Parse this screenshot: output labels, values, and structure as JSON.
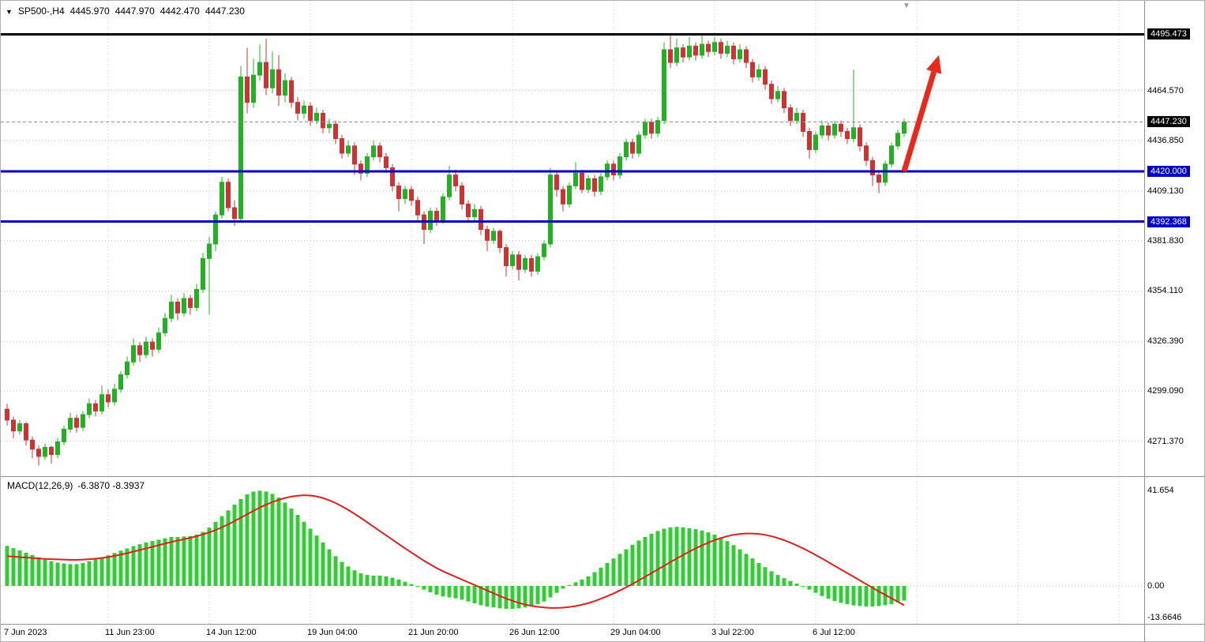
{
  "icons": {
    "symbol_marker": "▼",
    "chart_shift_marker": "▼"
  },
  "info_bar": {
    "symbol": "SP500-,H4",
    "open": "4445.970",
    "high": "4447.970",
    "low": "4442.470",
    "close": "4447.230"
  },
  "colors": {
    "background": "#ffffff",
    "grid": "#c4c4c4",
    "candle_up": "#23b123",
    "candle_down": "#cb3434",
    "hline_black": "#000000",
    "hline_blue": "#0000c8",
    "current_price_line": "#8c8c8c",
    "macd_histogram": "#32cd32",
    "macd_signal": "#e01f1f",
    "arrow": "#e8291c",
    "separator": "#909090",
    "axis_text": "#000000"
  },
  "price_axis": {
    "labels": [
      {
        "text": "4495.473",
        "value": 4495.473,
        "type": "black"
      },
      {
        "text": "4464.570",
        "value": 4464.57,
        "type": "normal"
      },
      {
        "text": "4447.230",
        "value": 4447.23,
        "type": "black"
      },
      {
        "text": "4436.850",
        "value": 4436.85,
        "type": "normal"
      },
      {
        "text": "4420.000",
        "value": 4420.0,
        "type": "blue"
      },
      {
        "text": "4409.130",
        "value": 4409.13,
        "type": "normal"
      },
      {
        "text": "4392.368",
        "value": 4392.368,
        "type": "blue"
      },
      {
        "text": "4381.830",
        "value": 4381.83,
        "type": "normal"
      },
      {
        "text": "4354.110",
        "value": 4354.11,
        "type": "normal"
      },
      {
        "text": "4326.390",
        "value": 4326.39,
        "type": "normal"
      },
      {
        "text": "4299.090",
        "value": 4299.09,
        "type": "normal"
      },
      {
        "text": "4271.370",
        "value": 4271.37,
        "type": "normal"
      }
    ]
  },
  "time_axis": {
    "grid_step": 16,
    "labels": [
      {
        "index": 0,
        "label": "7 Jun 2023"
      },
      {
        "index": 16,
        "label": "11 Jun 23:00"
      },
      {
        "index": 32,
        "label": "14 Jun 12:00"
      },
      {
        "index": 48,
        "label": "19 Jun 04:00"
      },
      {
        "index": 64,
        "label": "21 Jun 20:00"
      },
      {
        "index": 80,
        "label": "26 Jun 12:00"
      },
      {
        "index": 96,
        "label": "29 Jun 04:00"
      },
      {
        "index": 112,
        "label": "3 Jul 22:00"
      },
      {
        "index": 128,
        "label": "6 Jul 12:00"
      }
    ]
  },
  "chart_data": {
    "type": "candlestick",
    "symbol": "SP500-",
    "timeframe": "H4",
    "title": "SP500-,H4 4445.970 4447.970 4442.470 4447.230",
    "current_price": 4447.23,
    "price_range_visible": [
      4258,
      4496
    ],
    "hlines": [
      {
        "price": 4495.473,
        "color": "#000000",
        "width": 3,
        "label": "4495.473"
      },
      {
        "price": 4420.0,
        "color": "#0000c8",
        "width": 3,
        "label": "4420.000"
      },
      {
        "price": 4392.368,
        "color": "#0000c8",
        "width": 3,
        "label": "4392.368"
      }
    ],
    "annotation_arrow": {
      "from": {
        "index": 142,
        "price": 4420
      },
      "to": {
        "index": 147.5,
        "price": 4484
      }
    },
    "candles": [
      [
        4289,
        4292,
        4280,
        4283
      ],
      [
        4283,
        4285,
        4273,
        4277
      ],
      [
        4277,
        4283,
        4275,
        4281
      ],
      [
        4281,
        4282,
        4269,
        4272
      ],
      [
        4272,
        4274,
        4262,
        4267
      ],
      [
        4267,
        4269,
        4258,
        4263
      ],
      [
        4263,
        4270,
        4261,
        4268
      ],
      [
        4268,
        4269,
        4259,
        4264
      ],
      [
        4264,
        4273,
        4262,
        4271
      ],
      [
        4271,
        4280,
        4269,
        4278
      ],
      [
        4278,
        4287,
        4276,
        4284
      ],
      [
        4284,
        4286,
        4276,
        4279
      ],
      [
        4279,
        4288,
        4277,
        4286
      ],
      [
        4286,
        4295,
        4284,
        4292
      ],
      [
        4292,
        4294,
        4285,
        4288
      ],
      [
        4288,
        4302,
        4286,
        4297
      ],
      [
        4297,
        4300,
        4290,
        4293
      ],
      [
        4293,
        4303,
        4291,
        4300
      ],
      [
        4300,
        4310,
        4298,
        4308
      ],
      [
        4308,
        4318,
        4306,
        4315
      ],
      [
        4315,
        4328,
        4313,
        4324
      ],
      [
        4324,
        4326,
        4315,
        4319
      ],
      [
        4319,
        4329,
        4317,
        4326
      ],
      [
        4326,
        4328,
        4318,
        4322
      ],
      [
        4322,
        4334,
        4320,
        4331
      ],
      [
        4331,
        4342,
        4329,
        4339
      ],
      [
        4339,
        4352,
        4337,
        4348
      ],
      [
        4348,
        4350,
        4338,
        4342
      ],
      [
        4342,
        4353,
        4340,
        4350
      ],
      [
        4350,
        4352,
        4341,
        4345
      ],
      [
        4345,
        4358,
        4343,
        4355
      ],
      [
        4355,
        4375,
        4353,
        4372
      ],
      [
        4372,
        4384,
        4341,
        4380
      ],
      [
        4380,
        4398,
        4376,
        4396
      ],
      [
        4396,
        4417,
        4394,
        4414
      ],
      [
        4414,
        4416,
        4398,
        4400
      ],
      [
        4400,
        4404,
        4390,
        4394
      ],
      [
        4394,
        4478,
        4392,
        4472
      ],
      [
        4472,
        4488,
        4452,
        4458
      ],
      [
        4458,
        4482,
        4455,
        4473
      ],
      [
        4473,
        4490,
        4470,
        4480
      ],
      [
        4480,
        4493,
        4462,
        4466
      ],
      [
        4466,
        4486,
        4463,
        4476
      ],
      [
        4476,
        4484,
        4456,
        4462
      ],
      [
        4462,
        4474,
        4458,
        4470
      ],
      [
        4470,
        4472,
        4455,
        4458
      ],
      [
        4458,
        4461,
        4448,
        4452
      ],
      [
        4452,
        4459,
        4449,
        4456
      ],
      [
        4456,
        4458,
        4445,
        4448
      ],
      [
        4448,
        4455,
        4446,
        4452
      ],
      [
        4452,
        4454,
        4441,
        4444
      ],
      [
        4444,
        4449,
        4441,
        4446
      ],
      [
        4446,
        4448,
        4435,
        4438
      ],
      [
        4438,
        4440,
        4427,
        4430
      ],
      [
        4430,
        4437,
        4428,
        4434
      ],
      [
        4434,
        4436,
        4418,
        4424
      ],
      [
        4424,
        4426,
        4415,
        4419
      ],
      [
        4419,
        4430,
        4417,
        4428
      ],
      [
        4428,
        4437,
        4426,
        4434
      ],
      [
        4434,
        4436,
        4425,
        4428
      ],
      [
        4428,
        4430,
        4419,
        4422
      ],
      [
        4422,
        4424,
        4409,
        4412
      ],
      [
        4412,
        4414,
        4398,
        4405
      ],
      [
        4405,
        4412,
        4402,
        4410
      ],
      [
        4410,
        4412,
        4401,
        4404
      ],
      [
        4404,
        4406,
        4393,
        4396
      ],
      [
        4396,
        4398,
        4380,
        4388
      ],
      [
        4388,
        4400,
        4386,
        4398
      ],
      [
        4398,
        4400,
        4390,
        4393
      ],
      [
        4393,
        4408,
        4391,
        4406
      ],
      [
        4406,
        4423,
        4404,
        4418
      ],
      [
        4418,
        4421,
        4409,
        4412
      ],
      [
        4412,
        4414,
        4399,
        4402
      ],
      [
        4402,
        4404,
        4392,
        4395
      ],
      [
        4395,
        4402,
        4393,
        4399
      ],
      [
        4399,
        4401,
        4385,
        4388
      ],
      [
        4388,
        4390,
        4376,
        4382
      ],
      [
        4382,
        4389,
        4380,
        4387
      ],
      [
        4387,
        4388,
        4375,
        4378
      ],
      [
        4378,
        4380,
        4362,
        4368
      ],
      [
        4368,
        4376,
        4366,
        4374
      ],
      [
        4374,
        4376,
        4360,
        4366
      ],
      [
        4366,
        4374,
        4364,
        4372
      ],
      [
        4372,
        4374,
        4362,
        4365
      ],
      [
        4365,
        4375,
        4363,
        4373
      ],
      [
        4373,
        4382,
        4371,
        4380
      ],
      [
        4380,
        4422,
        4378,
        4418
      ],
      [
        4418,
        4420,
        4406,
        4410
      ],
      [
        4410,
        4412,
        4398,
        4402
      ],
      [
        4402,
        4414,
        4400,
        4412
      ],
      [
        4412,
        4425,
        4410,
        4419
      ],
      [
        4419,
        4421,
        4408,
        4410
      ],
      [
        4410,
        4418,
        4408,
        4416
      ],
      [
        4416,
        4418,
        4406,
        4409
      ],
      [
        4409,
        4419,
        4407,
        4417
      ],
      [
        4417,
        4426,
        4415,
        4424
      ],
      [
        4424,
        4426,
        4415,
        4418
      ],
      [
        4418,
        4430,
        4416,
        4428
      ],
      [
        4428,
        4438,
        4426,
        4436
      ],
      [
        4436,
        4438,
        4427,
        4430
      ],
      [
        4430,
        4442,
        4428,
        4440
      ],
      [
        4440,
        4449,
        4438,
        4447
      ],
      [
        4447,
        4449,
        4438,
        4441
      ],
      [
        4441,
        4450,
        4439,
        4448
      ],
      [
        4448,
        4491,
        4446,
        4487
      ],
      [
        4487,
        4495,
        4477,
        4480
      ],
      [
        4480,
        4493,
        4478,
        4488
      ],
      [
        4488,
        4490,
        4480,
        4483
      ],
      [
        4483,
        4494,
        4481,
        4489
      ],
      [
        4489,
        4491,
        4481,
        4484
      ],
      [
        4484,
        4495,
        4482,
        4490
      ],
      [
        4490,
        4492,
        4483,
        4486
      ],
      [
        4486,
        4494,
        4484,
        4491
      ],
      [
        4491,
        4493,
        4482,
        4485
      ],
      [
        4485,
        4492,
        4483,
        4489
      ],
      [
        4489,
        4491,
        4479,
        4482
      ],
      [
        4482,
        4490,
        4480,
        4487
      ],
      [
        4487,
        4489,
        4477,
        4480
      ],
      [
        4480,
        4482,
        4469,
        4472
      ],
      [
        4472,
        4479,
        4470,
        4476
      ],
      [
        4476,
        4478,
        4465,
        4468
      ],
      [
        4468,
        4470,
        4457,
        4460
      ],
      [
        4460,
        4467,
        4458,
        4464
      ],
      [
        4464,
        4466,
        4452,
        4455
      ],
      [
        4455,
        4457,
        4445,
        4448
      ],
      [
        4448,
        4455,
        4446,
        4452
      ],
      [
        4452,
        4454,
        4439,
        4442
      ],
      [
        4442,
        4444,
        4427,
        4432
      ],
      [
        4432,
        4442,
        4430,
        4440
      ],
      [
        4440,
        4448,
        4438,
        4445
      ],
      [
        4445,
        4447,
        4437,
        4440
      ],
      [
        4440,
        4448,
        4438,
        4446
      ],
      [
        4446,
        4448,
        4439,
        4442
      ],
      [
        4442,
        4444,
        4435,
        4438
      ],
      [
        4438,
        4476,
        4436,
        4444
      ],
      [
        4444,
        4446,
        4431,
        4434
      ],
      [
        4434,
        4436,
        4423,
        4426
      ],
      [
        4426,
        4428,
        4412,
        4418
      ],
      [
        4418,
        4420,
        4408,
        4414
      ],
      [
        4414,
        4426,
        4412,
        4424
      ],
      [
        4424,
        4436,
        4422,
        4434
      ],
      [
        4434,
        4443,
        4432,
        4441
      ],
      [
        4441,
        4449,
        4439,
        4447.23
      ]
    ],
    "macd": {
      "label_name": "MACD(12,26,9)",
      "label_values": "-6.3870 -8.3937",
      "params": [
        12,
        26,
        9
      ],
      "macd_value": -6.387,
      "signal_value": -8.3937,
      "axis_labels": [
        {
          "text": "41.654",
          "value": 41.654
        },
        {
          "text": "0.00",
          "value": 0
        },
        {
          "text": "-13.6646",
          "value": -13.6646
        }
      ],
      "histogram": [
        17.5,
        16.5,
        15.5,
        14.5,
        13.5,
        12.5,
        11.5,
        10.8,
        10.2,
        9.8,
        9.5,
        9.5,
        10,
        10.8,
        11.6,
        12.5,
        13.4,
        14.4,
        15.4,
        16.4,
        17.4,
        18.2,
        19,
        19.6,
        20.2,
        20.8,
        21.4,
        21.4,
        21.6,
        21.8,
        22.4,
        23.6,
        25.5,
        28,
        30.5,
        33,
        35.5,
        38,
        40,
        41.2,
        41.6,
        41.2,
        40.2,
        38.6,
        36.4,
        33.8,
        31,
        28,
        25,
        22,
        19,
        16,
        13,
        10.5,
        8.5,
        6.8,
        5.5,
        4.8,
        4.5,
        4.5,
        4.2,
        3.6,
        2.8,
        1.8,
        0.8,
        -0.4,
        -1.6,
        -2.8,
        -3.8,
        -4.6,
        -5,
        -5.4,
        -6,
        -6.8,
        -7.6,
        -8.4,
        -9,
        -9.4,
        -9.8,
        -10,
        -10,
        -9.8,
        -9.4,
        -8.8,
        -8,
        -6.8,
        -5,
        -3,
        -1.2,
        0.4,
        1.6,
        2.8,
        4.2,
        6,
        8,
        10,
        12,
        14,
        16,
        18,
        19.8,
        21.4,
        22.8,
        24,
        25,
        25.6,
        25.8,
        25.6,
        25.2,
        24.8,
        24.2,
        23.4,
        22.4,
        21.2,
        19.6,
        17.8,
        16,
        14,
        12,
        10,
        8.2,
        6.4,
        4.8,
        3.4,
        2.2,
        1,
        -0.2,
        -1.6,
        -3,
        -4.4,
        -5.6,
        -6.6,
        -7.4,
        -8,
        -8.5,
        -8.8,
        -9,
        -9,
        -8.8,
        -8.4,
        -8,
        -7.2,
        -6.387
      ],
      "signal": [
        13,
        12.8,
        12.6,
        12.4,
        12.2,
        12,
        11.8,
        11.7,
        11.6,
        11.5,
        11.4,
        11.4,
        11.5,
        11.7,
        11.9,
        12.2,
        12.6,
        13.1,
        13.7,
        14.3,
        15,
        15.7,
        16.4,
        17.1,
        17.8,
        18.5,
        19.2,
        19.8,
        20.4,
        21,
        21.7,
        22.5,
        23.4,
        24.4,
        25.6,
        26.9,
        28.3,
        29.8,
        31.3,
        32.8,
        34.2,
        35.5,
        36.6,
        37.6,
        38.4,
        39,
        39.4,
        39.6,
        39.5,
        39.1,
        38.4,
        37.4,
        36.2,
        34.8,
        33.2,
        31.5,
        29.7,
        27.8,
        25.9,
        24,
        22.1,
        20.2,
        18.3,
        16.4,
        14.6,
        12.8,
        11,
        9.4,
        7.8,
        6.4,
        5.2,
        4,
        2.8,
        1.6,
        0.4,
        -0.8,
        -2,
        -3.2,
        -4.4,
        -5.5,
        -6.5,
        -7.4,
        -8.1,
        -8.7,
        -9.1,
        -9.4,
        -9.6,
        -9.6,
        -9.5,
        -9.2,
        -8.8,
        -8.2,
        -7.5,
        -6.6,
        -5.6,
        -4.5,
        -3.3,
        -2,
        -0.6,
        0.9,
        2.4,
        4,
        5.6,
        7.2,
        8.8,
        10.4,
        12,
        13.5,
        15,
        16.4,
        17.7,
        18.9,
        20,
        20.9,
        21.7,
        22.3,
        22.7,
        22.9,
        22.9,
        22.7,
        22.3,
        21.7,
        20.9,
        20,
        18.9,
        17.7,
        16.4,
        15,
        13.5,
        12,
        10.4,
        8.8,
        7.2,
        5.6,
        4,
        2.4,
        0.8,
        -0.8,
        -2.4,
        -3.9,
        -5.4,
        -6.9,
        -8.3937
      ]
    }
  }
}
